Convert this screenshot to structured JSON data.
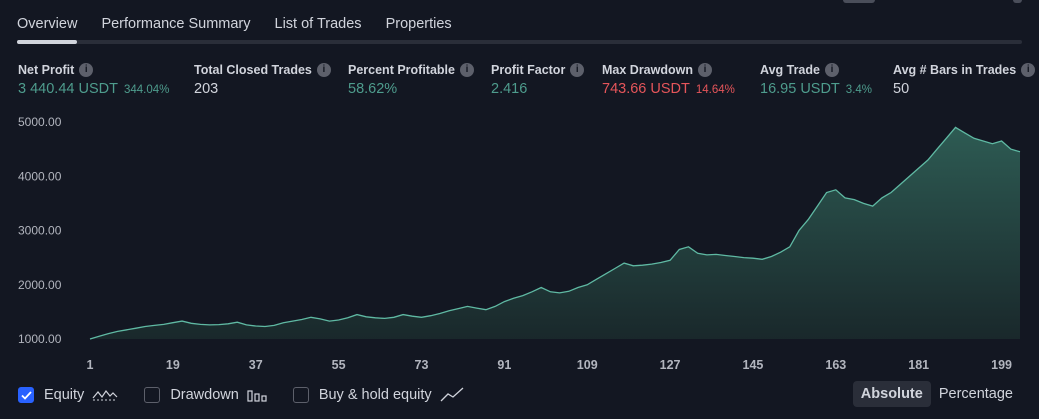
{
  "tabs": [
    "Overview",
    "Performance Summary",
    "List of Trades",
    "Properties"
  ],
  "metrics": [
    {
      "label": "Net Profit",
      "value": "3 440.44 USDT",
      "sub": "344.04%",
      "color": "green"
    },
    {
      "label": "Total Closed Trades",
      "value": "203",
      "sub": "",
      "color": "white"
    },
    {
      "label": "Percent Profitable",
      "value": "58.62%",
      "sub": "",
      "color": "green"
    },
    {
      "label": "Profit Factor",
      "value": "2.416",
      "sub": "",
      "color": "green"
    },
    {
      "label": "Max Drawdown",
      "value": "743.66 USDT",
      "sub": "14.64%",
      "color": "red"
    },
    {
      "label": "Avg Trade",
      "value": "16.95 USDT",
      "sub": "3.4%",
      "color": "green"
    },
    {
      "label": "Avg # Bars in Trades",
      "value": "50",
      "sub": "",
      "color": "white"
    }
  ],
  "legend": {
    "equity": {
      "label": "Equity",
      "checked": true
    },
    "drawdown": {
      "label": "Drawdown",
      "checked": false
    },
    "buyhold": {
      "label": "Buy & hold equity",
      "checked": false
    }
  },
  "toggle": {
    "absolute": "Absolute",
    "percentage": "Percentage",
    "active": "absolute"
  },
  "colors": {
    "accent": "#2962ff",
    "equity_line": "#5fb9a3",
    "positive": "#4e9c8d",
    "negative": "#e5555a"
  },
  "chart_data": {
    "type": "area",
    "x_ticks": [
      "1",
      "19",
      "37",
      "55",
      "73",
      "91",
      "109",
      "127",
      "145",
      "163",
      "181",
      "199"
    ],
    "y_ticks": [
      "1000.00",
      "2000.00",
      "3000.00",
      "4000.00",
      "5000.00"
    ],
    "xlim": [
      1,
      203
    ],
    "ylim": [
      1000,
      5000
    ],
    "x": [
      1,
      3,
      5,
      7,
      9,
      11,
      13,
      15,
      17,
      19,
      21,
      23,
      25,
      27,
      29,
      31,
      33,
      35,
      37,
      39,
      41,
      43,
      45,
      47,
      49,
      51,
      53,
      55,
      57,
      59,
      61,
      63,
      65,
      67,
      69,
      71,
      73,
      75,
      77,
      79,
      81,
      83,
      85,
      87,
      89,
      91,
      93,
      95,
      97,
      99,
      101,
      103,
      105,
      107,
      109,
      111,
      113,
      115,
      117,
      119,
      121,
      123,
      125,
      127,
      129,
      131,
      133,
      135,
      137,
      139,
      141,
      143,
      145,
      147,
      149,
      151,
      153,
      155,
      157,
      159,
      161,
      163,
      165,
      167,
      169,
      171,
      173,
      175,
      177,
      179,
      181,
      183,
      185,
      187,
      189,
      191,
      193,
      195,
      197,
      199,
      201,
      203
    ],
    "values": [
      1000,
      1050,
      1100,
      1140,
      1170,
      1200,
      1230,
      1250,
      1270,
      1300,
      1330,
      1290,
      1270,
      1260,
      1265,
      1280,
      1310,
      1260,
      1240,
      1230,
      1250,
      1300,
      1330,
      1360,
      1400,
      1370,
      1330,
      1350,
      1390,
      1450,
      1410,
      1390,
      1380,
      1400,
      1450,
      1420,
      1400,
      1430,
      1470,
      1520,
      1560,
      1600,
      1570,
      1540,
      1600,
      1690,
      1750,
      1800,
      1870,
      1950,
      1870,
      1850,
      1880,
      1950,
      2000,
      2100,
      2200,
      2300,
      2400,
      2350,
      2360,
      2380,
      2410,
      2450,
      2650,
      2700,
      2580,
      2550,
      2560,
      2540,
      2520,
      2500,
      2490,
      2470,
      2520,
      2600,
      2700,
      3000,
      3200,
      3450,
      3700,
      3750,
      3600,
      3570,
      3500,
      3450,
      3600,
      3700,
      3850,
      4000,
      4150,
      4300,
      4500,
      4700,
      4900,
      4800,
      4700,
      4650,
      4600,
      4650,
      4500,
      4450
    ]
  }
}
